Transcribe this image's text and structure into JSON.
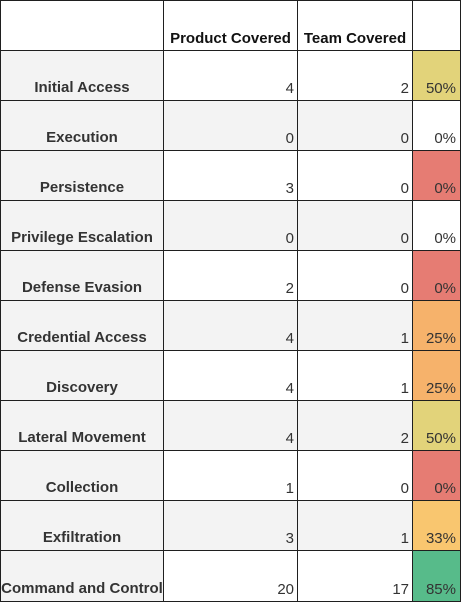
{
  "headers": {
    "product_covered": "Product Covered",
    "team_covered": "Team Covered"
  },
  "colors": {
    "header_percent_cell": "#f3f3f3",
    "label_cell": "#f3f3f3",
    "grid_border": "#1f1f1f",
    "pct_0_neutral": "#ffffff",
    "pct_0_red": "#e67c73",
    "pct_25_orange": "#f6b26b",
    "pct_33_light_orange": "#f9c66f",
    "pct_50_yellow": "#e2d37a",
    "pct_85_green": "#57bb8a"
  },
  "rows": [
    {
      "tactic": "Initial Access",
      "product": "4",
      "team": "2",
      "percent": "50%",
      "pct_color": "#e2d37a"
    },
    {
      "tactic": "Execution",
      "product": "0",
      "team": "0",
      "percent": "0%",
      "pct_color": "#ffffff"
    },
    {
      "tactic": "Persistence",
      "product": "3",
      "team": "0",
      "percent": "0%",
      "pct_color": "#e67c73"
    },
    {
      "tactic": "Privilege Escalation",
      "product": "0",
      "team": "0",
      "percent": "0%",
      "pct_color": "#ffffff"
    },
    {
      "tactic": "Defense Evasion",
      "product": "2",
      "team": "0",
      "percent": "0%",
      "pct_color": "#e67c73"
    },
    {
      "tactic": "Credential Access",
      "product": "4",
      "team": "1",
      "percent": "25%",
      "pct_color": "#f6b26b"
    },
    {
      "tactic": "Discovery",
      "product": "4",
      "team": "1",
      "percent": "25%",
      "pct_color": "#f6b26b"
    },
    {
      "tactic": "Lateral Movement",
      "product": "4",
      "team": "2",
      "percent": "50%",
      "pct_color": "#e2d37a"
    },
    {
      "tactic": "Collection",
      "product": "1",
      "team": "0",
      "percent": "0%",
      "pct_color": "#e67c73"
    },
    {
      "tactic": "Exfiltration",
      "product": "3",
      "team": "1",
      "percent": "33%",
      "pct_color": "#f9c66f"
    },
    {
      "tactic": "Command and Control",
      "product": "20",
      "team": "17",
      "percent": "85%",
      "pct_color": "#57bb8a"
    }
  ]
}
